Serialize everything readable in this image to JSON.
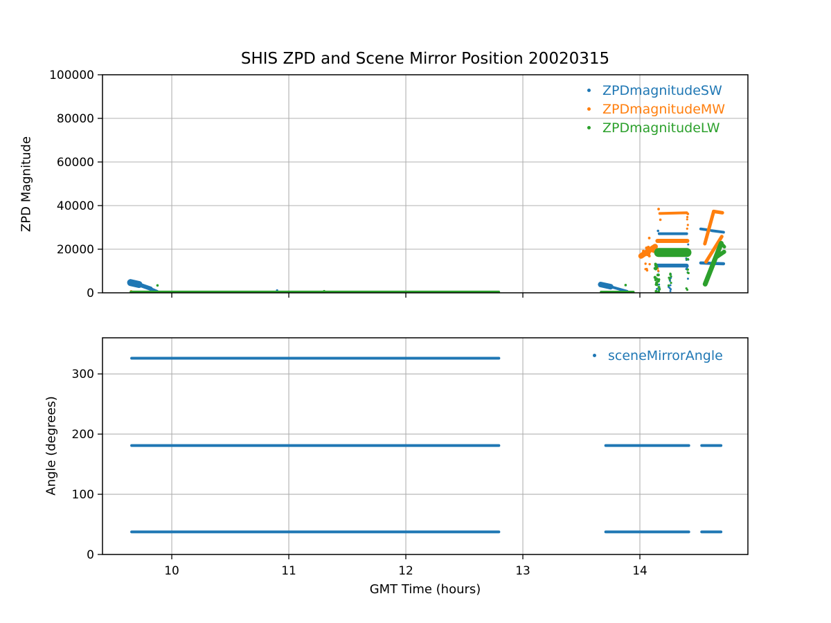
{
  "figure": {
    "background": "#ffffff",
    "grid_color": "#b0b0b0",
    "frame_color": "#000000",
    "text_color": "#000000"
  },
  "chart_data": [
    {
      "type": "scatter",
      "title": "SHIS ZPD and Scene Mirror Position 20020315",
      "xlabel": "",
      "ylabel": "ZPD Magnitude",
      "xlim": [
        9.408,
        14.923
      ],
      "ylim": [
        0,
        100000
      ],
      "xticks": [
        10,
        11,
        12,
        13,
        14
      ],
      "yticks": [
        0,
        20000,
        40000,
        60000,
        80000,
        100000
      ],
      "show_xticklabels": false,
      "grid": true,
      "legend_position": "upper right",
      "legend": [
        {
          "label": "ZPDmagnitudeSW",
          "color": "#1f77b4"
        },
        {
          "label": "ZPDmagnitudeMW",
          "color": "#ff7f0e"
        },
        {
          "label": "ZPDmagnitudeLW",
          "color": "#2ca02c"
        }
      ],
      "series": [
        {
          "name": "ZPDmagnitudeSW",
          "color": "#1f77b4",
          "segments": [
            [
              "line",
              9.648,
              4700,
              9.72,
              3800,
              10
            ],
            [
              "line",
              9.72,
              3800,
              9.82,
              1900,
              6
            ],
            [
              "line",
              9.82,
              1900,
              9.875,
              700,
              4
            ],
            [
              "dot",
              10.9,
              1100,
              1.6
            ],
            [
              "line",
              13.665,
              3800,
              13.75,
              2800,
              8
            ],
            [
              "line",
              13.75,
              2800,
              13.89,
              700,
              4
            ],
            [
              "dot",
              13.925,
              250,
              1.5
            ],
            [
              "dot",
              14.155,
              28400,
              1.8
            ],
            [
              "line",
              14.165,
              27100,
              14.4,
              27100,
              4
            ],
            [
              "line",
              14.14,
              12500,
              14.4,
              12500,
              5.5
            ],
            [
              "scatter",
              14.14,
              14.165,
              500,
              11000,
              6,
              1.5
            ],
            [
              "scatter",
              14.245,
              14.27,
              800,
              9500,
              9,
              1.5
            ],
            [
              "scatter",
              14.395,
              14.42,
              500,
              26500,
              12,
              1.5
            ],
            [
              "line",
              14.52,
              29300,
              14.6,
              28700,
              4
            ],
            [
              "line",
              14.615,
              28500,
              14.715,
              27800,
              4
            ],
            [
              "line",
              14.52,
              13700,
              14.6,
              13550,
              4.5
            ],
            [
              "line",
              14.61,
              13500,
              14.715,
              13350,
              4.5
            ]
          ]
        },
        {
          "name": "ZPDmagnitudeMW",
          "color": "#ff7f0e",
          "segments": [
            [
              "dot",
              9.653,
              650,
              1.8
            ],
            [
              "line",
              14.01,
              16900,
              14.13,
              21200,
              8
            ],
            [
              "scatter",
              14.02,
              14.12,
              16800,
              21500,
              12,
              2
            ],
            [
              "scatter",
              14.04,
              14.09,
              10200,
              13800,
              5,
              1.7
            ],
            [
              "dot",
              14.08,
              25100,
              1.9
            ],
            [
              "dot",
              14.16,
              38400,
              1.9
            ],
            [
              "dot",
              14.175,
              33500,
              1.8
            ],
            [
              "line",
              14.17,
              36400,
              14.4,
              36700,
              4
            ],
            [
              "dot",
              14.41,
              36200,
              1.9
            ],
            [
              "line",
              14.15,
              23800,
              14.405,
              23800,
              6
            ],
            [
              "scatter",
              14.398,
              14.418,
              27500,
              35500,
              4,
              1.6
            ],
            [
              "scatter",
              14.13,
              14.16,
              2000,
              15000,
              5,
              1.6
            ],
            [
              "line",
              14.555,
              22500,
              14.63,
              37200,
              5
            ],
            [
              "line",
              14.63,
              37350,
              14.705,
              36700,
              5
            ],
            [
              "line",
              14.565,
              14200,
              14.7,
              25800,
              5
            ]
          ]
        },
        {
          "name": "ZPDmagnitudeLW",
          "color": "#2ca02c",
          "segments": [
            [
              "line",
              9.65,
              450,
              12.795,
              450,
              3.5
            ],
            [
              "dot",
              9.878,
              3400,
              1.8
            ],
            [
              "dot",
              11.302,
              800,
              1.6
            ],
            [
              "line",
              13.668,
              400,
              13.945,
              400,
              3.5
            ],
            [
              "dot",
              13.878,
              3550,
              1.8
            ],
            [
              "scatter",
              14.128,
              14.168,
              300,
              13500,
              22,
              2
            ],
            [
              "line",
              14.16,
              18500,
              14.402,
              18500,
              13
            ],
            [
              "scatter",
              14.245,
              14.27,
              1000,
              9000,
              7,
              1.6
            ],
            [
              "scatter",
              14.395,
              14.42,
              300,
              17500,
              9,
              1.6
            ],
            [
              "line",
              14.558,
              4000,
              14.695,
              22700,
              7
            ],
            [
              "line",
              14.695,
              22700,
              14.722,
              21100,
              5
            ],
            [
              "line",
              14.652,
              16300,
              14.72,
              18800,
              6
            ]
          ]
        }
      ]
    },
    {
      "type": "scatter",
      "title": "",
      "xlabel": "GMT Time (hours)",
      "ylabel": "Angle (degrees)",
      "xlim": [
        9.408,
        14.923
      ],
      "ylim": [
        0,
        360
      ],
      "xticks": [
        10,
        11,
        12,
        13,
        14
      ],
      "yticks": [
        0,
        100,
        200,
        300
      ],
      "show_xticklabels": true,
      "grid": true,
      "legend_position": "upper right",
      "legend": [
        {
          "label": "sceneMirrorAngle",
          "color": "#1f77b4"
        }
      ],
      "series": [
        {
          "name": "sceneMirrorAngle",
          "color": "#1f77b4",
          "segments": [
            [
              "line",
              9.657,
              326,
              12.795,
              326,
              4
            ],
            [
              "line",
              9.657,
              181,
              12.795,
              181,
              4
            ],
            [
              "line",
              9.657,
              37.5,
              12.795,
              37.5,
              4
            ],
            [
              "line",
              13.708,
              181,
              14.418,
              181,
              4
            ],
            [
              "line",
              14.528,
              181,
              14.693,
              181,
              4
            ],
            [
              "line",
              13.708,
              37.5,
              14.418,
              37.5,
              4
            ],
            [
              "line",
              14.528,
              37.5,
              14.693,
              37.5,
              4
            ]
          ]
        }
      ]
    }
  ]
}
